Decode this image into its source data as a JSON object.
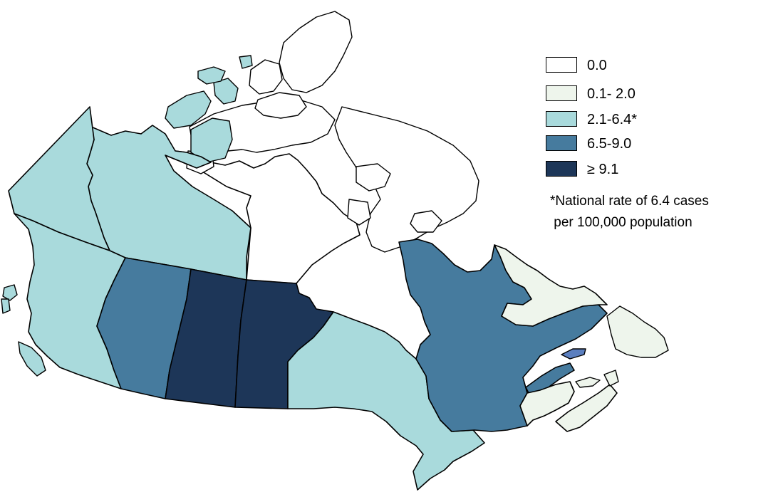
{
  "colors": {
    "c0": "#ffffff",
    "c1": "#eef5ec",
    "c2": "#a9dadc",
    "c3": "#467b9e",
    "c4": "#1d3658",
    "lake": "#5b7fbf"
  },
  "legend": {
    "items": [
      {
        "label": "0.0",
        "color": "#ffffff"
      },
      {
        "label": "0.1- 2.0",
        "color": "#eef5ec"
      },
      {
        "label": "2.1-6.4*",
        "color": "#a9dadc"
      },
      {
        "label": "6.5-9.0",
        "color": "#467b9e"
      },
      {
        "label": "≥ 9.1",
        "color": "#1d3658"
      }
    ]
  },
  "note": {
    "line1": "*National rate of 6.4 cases",
    "line2": " per 100,000 population"
  },
  "regions": [
    {
      "id": "yukon",
      "category": "2.1-6.4*"
    },
    {
      "id": "british-columbia",
      "category": "2.1-6.4*"
    },
    {
      "id": "northwest-territories",
      "category": "2.1-6.4*"
    },
    {
      "id": "nunavut",
      "category": "0.0"
    },
    {
      "id": "alberta",
      "category": "6.5-9.0"
    },
    {
      "id": "saskatchewan",
      "category": "≥ 9.1"
    },
    {
      "id": "manitoba",
      "category": "≥ 9.1"
    },
    {
      "id": "ontario",
      "category": "2.1-6.4*"
    },
    {
      "id": "quebec",
      "category": "6.5-9.0"
    },
    {
      "id": "newfoundland-and-labrador",
      "category": "0.1- 2.0"
    },
    {
      "id": "new-brunswick",
      "category": "0.1- 2.0"
    },
    {
      "id": "nova-scotia",
      "category": "0.1- 2.0"
    },
    {
      "id": "prince-edward-island",
      "category": "0.1- 2.0"
    }
  ]
}
